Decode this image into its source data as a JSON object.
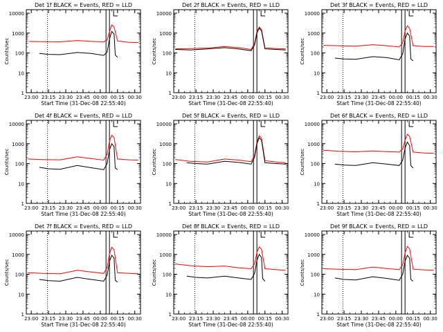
{
  "chart_data": [
    {
      "type": "line",
      "title": "Det 1f BLACK = Events, RED = LLD",
      "xlabel": "Start Time (31-Dec-08 22:55:40)",
      "ylabel": "Counts/sec",
      "x_ticks": [
        "23:00",
        "23:15",
        "23:30",
        "23:45",
        "00:00",
        "00:15",
        "00:30"
      ],
      "y_ticks": [
        "1",
        "10",
        "100",
        "1000",
        "10000"
      ],
      "y_scale": "log",
      "ylim": [
        1,
        15000
      ],
      "xlim": [
        "22:55:40",
        "00:35"
      ],
      "markers": {
        "dotted": "23:14",
        "solid": [
          "00:05",
          "00:08"
        ]
      },
      "series": [
        {
          "color": "#ff0000",
          "x": [
            "22:58",
            "23:10",
            "23:25",
            "23:40",
            "23:52",
            "00:03",
            "00:06",
            "00:08",
            "00:10",
            "00:12",
            "00:15",
            "00:25",
            "00:33"
          ],
          "values": [
            380,
            370,
            360,
            420,
            380,
            360,
            450,
            1200,
            2600,
            2000,
            400,
            340,
            330
          ]
        },
        {
          "color": "#000000",
          "x": [
            "23:07",
            "23:15",
            "23:25",
            "23:40",
            "23:52",
            "00:03",
            "00:06",
            "00:08",
            "00:10",
            "00:12",
            "00:13",
            "00:15"
          ],
          "values": [
            95,
            85,
            82,
            105,
            95,
            75,
            110,
            500,
            1200,
            900,
            80,
            60
          ]
        }
      ]
    },
    {
      "type": "line",
      "title": "Det 2f BLACK = Events, RED = LLD",
      "xlabel": "Start Time (31-Dec-08 22:55:40)",
      "ylabel": "Counts/sec",
      "x_ticks": [
        "23:00",
        "23:15",
        "23:30",
        "23:45",
        "00:00",
        "00:15",
        "00:30"
      ],
      "y_ticks": [
        "1",
        "10",
        "100",
        "1000",
        "10000"
      ],
      "y_scale": "log",
      "ylim": [
        1,
        15000
      ],
      "xlim": [
        "22:55:40",
        "00:35"
      ],
      "markers": {
        "dotted": "23:14",
        "solid": [
          "00:05",
          "00:08"
        ]
      },
      "series": [
        {
          "color": "#ff0000",
          "x": [
            "22:57",
            "23:10",
            "23:25",
            "23:40",
            "23:52",
            "00:03",
            "00:06",
            "00:08",
            "00:10",
            "00:12",
            "00:15",
            "00:25",
            "00:33"
          ],
          "values": [
            160,
            165,
            175,
            210,
            185,
            150,
            300,
            1200,
            2000,
            1500,
            180,
            165,
            160
          ]
        },
        {
          "color": "#000000",
          "x": [
            "22:57",
            "23:10",
            "23:25",
            "23:40",
            "23:52",
            "00:03",
            "00:06",
            "00:08",
            "00:10",
            "00:12",
            "00:15",
            "00:25",
            "00:33"
          ],
          "values": [
            150,
            140,
            160,
            185,
            160,
            130,
            250,
            1000,
            1800,
            1300,
            160,
            150,
            140
          ]
        }
      ]
    },
    {
      "type": "line",
      "title": "Det 3f BLACK = Events, RED = LLD",
      "xlabel": "Start Time (31-Dec-08 22:55:40)",
      "ylabel": "Counts/sec",
      "x_ticks": [
        "23:00",
        "23:15",
        "23:30",
        "23:45",
        "00:00",
        "00:15",
        "00:30"
      ],
      "y_ticks": [
        "1",
        "10",
        "100",
        "1000",
        "10000"
      ],
      "y_scale": "log",
      "ylim": [
        1,
        15000
      ],
      "xlim": [
        "22:55:40",
        "00:35"
      ],
      "markers": {
        "dotted": "23:14",
        "solid": [
          "00:05",
          "00:08"
        ]
      },
      "series": [
        {
          "color": "#ff0000",
          "x": [
            "22:57",
            "23:10",
            "23:25",
            "23:40",
            "23:52",
            "00:03",
            "00:06",
            "00:08",
            "00:10",
            "00:12",
            "00:15",
            "00:25",
            "00:33"
          ],
          "values": [
            240,
            230,
            220,
            260,
            230,
            200,
            320,
            1300,
            2300,
            1700,
            230,
            210,
            210
          ]
        },
        {
          "color": "#000000",
          "x": [
            "23:07",
            "23:15",
            "23:25",
            "23:40",
            "23:52",
            "00:03",
            "00:06",
            "00:08",
            "00:10",
            "00:12",
            "00:13",
            "00:15"
          ],
          "values": [
            55,
            50,
            48,
            65,
            58,
            45,
            90,
            500,
            1000,
            700,
            50,
            40
          ]
        }
      ]
    },
    {
      "type": "line",
      "title": "Det 4f BLACK = Events, RED = LLD",
      "xlabel": "Start Time (31-Dec-08 22:55:40)",
      "ylabel": "Counts/sec",
      "x_ticks": [
        "23:00",
        "23:15",
        "23:30",
        "23:45",
        "00:00",
        "00:15",
        "00:30"
      ],
      "y_ticks": [
        "1",
        "10",
        "100",
        "1000",
        "10000"
      ],
      "y_scale": "log",
      "ylim": [
        1,
        15000
      ],
      "xlim": [
        "22:55:40",
        "00:35"
      ],
      "markers": {
        "dotted": "23:14",
        "solid": [
          "00:05",
          "00:08"
        ]
      },
      "series": [
        {
          "color": "#ff0000",
          "x": [
            "22:57",
            "23:10",
            "23:25",
            "23:40",
            "23:52",
            "00:03",
            "00:06",
            "00:08",
            "00:10",
            "00:12",
            "00:15",
            "00:25",
            "00:33"
          ],
          "values": [
            170,
            160,
            155,
            220,
            180,
            150,
            300,
            1400,
            2700,
            2000,
            170,
            155,
            150
          ]
        },
        {
          "color": "#000000",
          "x": [
            "23:07",
            "23:15",
            "23:25",
            "23:40",
            "23:52",
            "00:03",
            "00:06",
            "00:08",
            "00:10",
            "00:12",
            "00:13",
            "00:15"
          ],
          "values": [
            65,
            55,
            52,
            80,
            62,
            50,
            100,
            500,
            1000,
            700,
            60,
            50
          ]
        }
      ]
    },
    {
      "type": "line",
      "title": "Det 5f BLACK = Events, RED = LLD",
      "xlabel": "Start Time (31-Dec-08 22:55:40)",
      "ylabel": "Counts/sec",
      "x_ticks": [
        "23:00",
        "23:15",
        "23:30",
        "23:45",
        "00:00",
        "00:15",
        "00:30"
      ],
      "y_ticks": [
        "1",
        "10",
        "100",
        "1000",
        "10000"
      ],
      "y_scale": "log",
      "ylim": [
        1,
        15000
      ],
      "xlim": [
        "22:55:40",
        "00:35"
      ],
      "markers": {
        "dotted": "23:14",
        "solid": [
          "00:05",
          "00:08"
        ]
      },
      "series": [
        {
          "color": "#ff0000",
          "x": [
            "22:57",
            "23:10",
            "23:25",
            "23:40",
            "23:52",
            "00:03",
            "00:06",
            "00:08",
            "00:10",
            "00:12",
            "00:15",
            "00:25",
            "00:33"
          ],
          "values": [
            160,
            130,
            120,
            170,
            150,
            125,
            260,
            1200,
            2500,
            1900,
            140,
            120,
            110
          ]
        },
        {
          "color": "#000000",
          "x": [
            "23:07",
            "23:15",
            "23:25",
            "23:40",
            "23:52",
            "00:03",
            "00:06",
            "00:08",
            "00:10",
            "00:12",
            "00:15",
            "00:25",
            "00:33"
          ],
          "values": [
            110,
            100,
            95,
            130,
            115,
            95,
            210,
            1000,
            2000,
            1500,
            110,
            100,
            95
          ]
        }
      ]
    },
    {
      "type": "line",
      "title": "Det 6f BLACK = Events, RED = LLD",
      "xlabel": "Start Time (31-Dec-08 22:55:40)",
      "ylabel": "Counts/sec",
      "x_ticks": [
        "23:00",
        "23:15",
        "23:30",
        "23:45",
        "00:00",
        "00:15",
        "00:30"
      ],
      "y_ticks": [
        "1",
        "10",
        "100",
        "1000",
        "10000"
      ],
      "y_scale": "log",
      "ylim": [
        1,
        15000
      ],
      "xlim": [
        "22:55:40",
        "00:35"
      ],
      "markers": {
        "dotted": "23:14",
        "solid": [
          "00:05",
          "00:08"
        ]
      },
      "series": [
        {
          "color": "#ff0000",
          "x": [
            "22:57",
            "23:10",
            "23:25",
            "23:40",
            "23:52",
            "00:03",
            "00:06",
            "00:08",
            "00:10",
            "00:12",
            "00:15",
            "00:25",
            "00:33"
          ],
          "values": [
            470,
            420,
            390,
            430,
            400,
            380,
            550,
            1500,
            3000,
            2300,
            380,
            340,
            330
          ]
        },
        {
          "color": "#000000",
          "x": [
            "23:07",
            "23:15",
            "23:25",
            "23:40",
            "23:52",
            "00:03",
            "00:06",
            "00:08",
            "00:10",
            "00:12",
            "00:13",
            "00:15"
          ],
          "values": [
            95,
            85,
            80,
            110,
            95,
            80,
            150,
            600,
            1200,
            800,
            80,
            60
          ]
        }
      ]
    },
    {
      "type": "line",
      "title": "Det 7f BLACK = Events, RED = LLD",
      "xlabel": "Start Time (31-Dec-08 22:55:40)",
      "ylabel": "Counts/sec",
      "x_ticks": [
        "23:00",
        "23:15",
        "23:30",
        "23:45",
        "00:00",
        "00:15",
        "00:30"
      ],
      "y_ticks": [
        "1",
        "10",
        "100",
        "1000",
        "10000"
      ],
      "y_scale": "log",
      "ylim": [
        1,
        15000
      ],
      "xlim": [
        "22:55:40",
        "00:35"
      ],
      "markers": {
        "dotted": "23:14",
        "solid": [
          "00:05",
          "00:08"
        ]
      },
      "series": [
        {
          "color": "#ff0000",
          "x": [
            "22:57",
            "23:10",
            "23:25",
            "23:40",
            "23:52",
            "00:03",
            "00:06",
            "00:08",
            "00:10",
            "00:12",
            "00:15",
            "00:25",
            "00:33"
          ],
          "values": [
            120,
            110,
            105,
            160,
            130,
            110,
            220,
            1100,
            2300,
            1700,
            120,
            110,
            105
          ]
        },
        {
          "color": "#000000",
          "x": [
            "23:07",
            "23:15",
            "23:25",
            "23:40",
            "23:52",
            "00:03",
            "00:06",
            "00:08",
            "00:10",
            "00:12",
            "00:13",
            "00:15"
          ],
          "values": [
            55,
            48,
            45,
            70,
            55,
            45,
            90,
            450,
            900,
            650,
            50,
            40
          ]
        }
      ]
    },
    {
      "type": "line",
      "title": "Det 8f BLACK = Events, RED = LLD",
      "xlabel": "Start Time (31-Dec-08 22:55:40)",
      "ylabel": "Counts/sec",
      "x_ticks": [
        "23:00",
        "23:15",
        "23:30",
        "23:45",
        "00:00",
        "00:15",
        "00:30"
      ],
      "y_ticks": [
        "1",
        "10",
        "100",
        "1000",
        "10000"
      ],
      "y_scale": "log",
      "ylim": [
        1,
        15000
      ],
      "xlim": [
        "22:55:40",
        "00:35"
      ],
      "markers": {
        "dotted": "23:14",
        "solid": [
          "00:05",
          "00:08"
        ]
      },
      "series": [
        {
          "color": "#ff0000",
          "x": [
            "22:57",
            "23:10",
            "23:25",
            "23:40",
            "23:52",
            "00:03",
            "00:06",
            "00:08",
            "00:10",
            "00:12",
            "00:15",
            "00:25",
            "00:33"
          ],
          "values": [
            330,
            270,
            240,
            260,
            210,
            190,
            330,
            1300,
            2400,
            1800,
            190,
            170,
            160
          ]
        },
        {
          "color": "#000000",
          "x": [
            "23:07",
            "23:15",
            "23:25",
            "23:40",
            "23:52",
            "00:03",
            "00:06",
            "00:08",
            "00:10",
            "00:12",
            "00:13",
            "00:15"
          ],
          "values": [
            80,
            70,
            65,
            80,
            65,
            55,
            110,
            500,
            1000,
            700,
            60,
            45
          ]
        }
      ]
    },
    {
      "type": "line",
      "title": "Det 9f BLACK = Events, RED = LLD",
      "xlabel": "Start Time (31-Dec-08 22:55:40)",
      "ylabel": "Counts/sec",
      "x_ticks": [
        "23:00",
        "23:15",
        "23:30",
        "23:45",
        "00:00",
        "00:15",
        "00:30"
      ],
      "y_ticks": [
        "1",
        "10",
        "100",
        "1000",
        "10000"
      ],
      "y_scale": "log",
      "ylim": [
        1,
        15000
      ],
      "xlim": [
        "22:55:40",
        "00:35"
      ],
      "markers": {
        "dotted": "23:14",
        "solid": [
          "00:05",
          "00:08"
        ]
      },
      "series": [
        {
          "color": "#ff0000",
          "x": [
            "22:57",
            "23:10",
            "23:25",
            "23:40",
            "23:52",
            "00:03",
            "00:06",
            "00:08",
            "00:10",
            "00:12",
            "00:15",
            "00:25",
            "00:33"
          ],
          "values": [
            190,
            180,
            170,
            230,
            195,
            170,
            300,
            1200,
            2500,
            1900,
            180,
            165,
            160
          ]
        },
        {
          "color": "#000000",
          "x": [
            "23:07",
            "23:15",
            "23:25",
            "23:40",
            "23:52",
            "00:03",
            "00:06",
            "00:08",
            "00:10",
            "00:12",
            "00:13",
            "00:15"
          ],
          "values": [
            65,
            55,
            52,
            75,
            62,
            50,
            100,
            450,
            900,
            650,
            55,
            45
          ]
        }
      ]
    }
  ]
}
